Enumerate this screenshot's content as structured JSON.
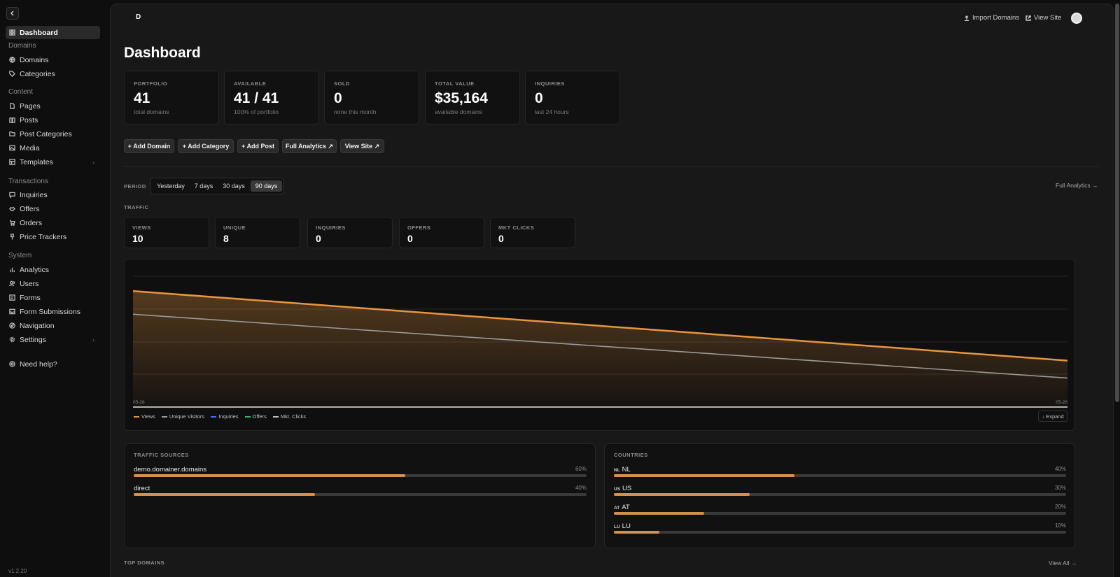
{
  "sidebar": {
    "collapse_label": "‹",
    "sections": {
      "domains": "Domains",
      "content": "Content",
      "transactions": "Transactions",
      "system": "System"
    },
    "items": {
      "dashboard": "Dashboard",
      "domains": "Domains",
      "categories": "Categories",
      "pages": "Pages",
      "posts": "Posts",
      "post_categories": "Post Categories",
      "media": "Media",
      "templates": "Templates",
      "inquiries": "Inquiries",
      "offers": "Offers",
      "orders": "Orders",
      "price_trackers": "Price Trackers",
      "analytics": "Analytics",
      "users": "Users",
      "forms": "Forms",
      "form_submissions": "Form Submissions",
      "navigation": "Navigation",
      "settings": "Settings",
      "help": "Need help?"
    },
    "version": "v1.2.20"
  },
  "header": {
    "logo": "D",
    "import_domains": "Import Domains",
    "view_site": "View Site"
  },
  "page": {
    "title": "Dashboard"
  },
  "stats": [
    {
      "label": "PORTFOLIO",
      "value": "41",
      "sub": "total domains"
    },
    {
      "label": "AVAILABLE",
      "value": "41 / 41",
      "sub": "100% of portfolio"
    },
    {
      "label": "SOLD",
      "value": "0",
      "sub": "none this month"
    },
    {
      "label": "TOTAL VALUE",
      "value": "$35,164",
      "sub": "available domains"
    },
    {
      "label": "INQUIRIES",
      "value": "0",
      "sub": "last 24 hours"
    }
  ],
  "actions": {
    "add_domain": "+ Add Domain",
    "add_category": "+ Add Category",
    "add_post": "+ Add Post",
    "full_analytics": "Full Analytics ↗",
    "view_site": "View Site ↗"
  },
  "period": {
    "label": "PERIOD",
    "options": [
      "Yesterday",
      "7 days",
      "30 days",
      "90 days"
    ],
    "selected": "90 days",
    "full_analytics_link": "Full Analytics →"
  },
  "traffic": {
    "title": "TRAFFIC",
    "cards": [
      {
        "label": "VIEWS",
        "value": "10"
      },
      {
        "label": "UNIQUE",
        "value": "8"
      },
      {
        "label": "INQUIRIES",
        "value": "0"
      },
      {
        "label": "OFFERS",
        "value": "0"
      },
      {
        "label": "MKT CLICKS",
        "value": "0"
      }
    ]
  },
  "chart_data": {
    "type": "area",
    "x": [
      "05-28",
      "05-28"
    ],
    "series": [
      {
        "name": "Views",
        "values": [
          10,
          4
        ],
        "color": "#e8953e"
      },
      {
        "name": "Unique Visitors",
        "values": [
          8,
          2.5
        ],
        "color": "#9a9a9a"
      },
      {
        "name": "Inquiries",
        "values": [
          0,
          0
        ],
        "color": "#4a6cf0"
      },
      {
        "name": "Offers",
        "values": [
          0,
          0
        ],
        "color": "#3bb26b"
      },
      {
        "name": "Mkt. Clicks",
        "values": [
          0,
          0
        ],
        "color": "#bdbdbd"
      }
    ],
    "ylim": [
      0,
      12
    ],
    "grid": true,
    "legend_position": "bottom-left",
    "expand_label": "↓ Expand"
  },
  "traffic_sources": {
    "title": "TRAFFIC SOURCES",
    "items": [
      {
        "label": "demo.domainer.domains",
        "pct": 60,
        "pct_label": "60%"
      },
      {
        "label": "direct",
        "pct": 40,
        "pct_label": "40%"
      }
    ]
  },
  "countries": {
    "title": "COUNTRIES",
    "items": [
      {
        "code": "NL",
        "label": "NL",
        "pct": 40,
        "pct_label": "40%"
      },
      {
        "code": "US",
        "label": "US",
        "pct": 30,
        "pct_label": "30%"
      },
      {
        "code": "AT",
        "label": "AT",
        "pct": 20,
        "pct_label": "20%"
      },
      {
        "code": "LU",
        "label": "LU",
        "pct": 10,
        "pct_label": "10%"
      }
    ]
  },
  "top_domains": {
    "title": "TOP DOMAINS",
    "view_all": "View All →"
  }
}
